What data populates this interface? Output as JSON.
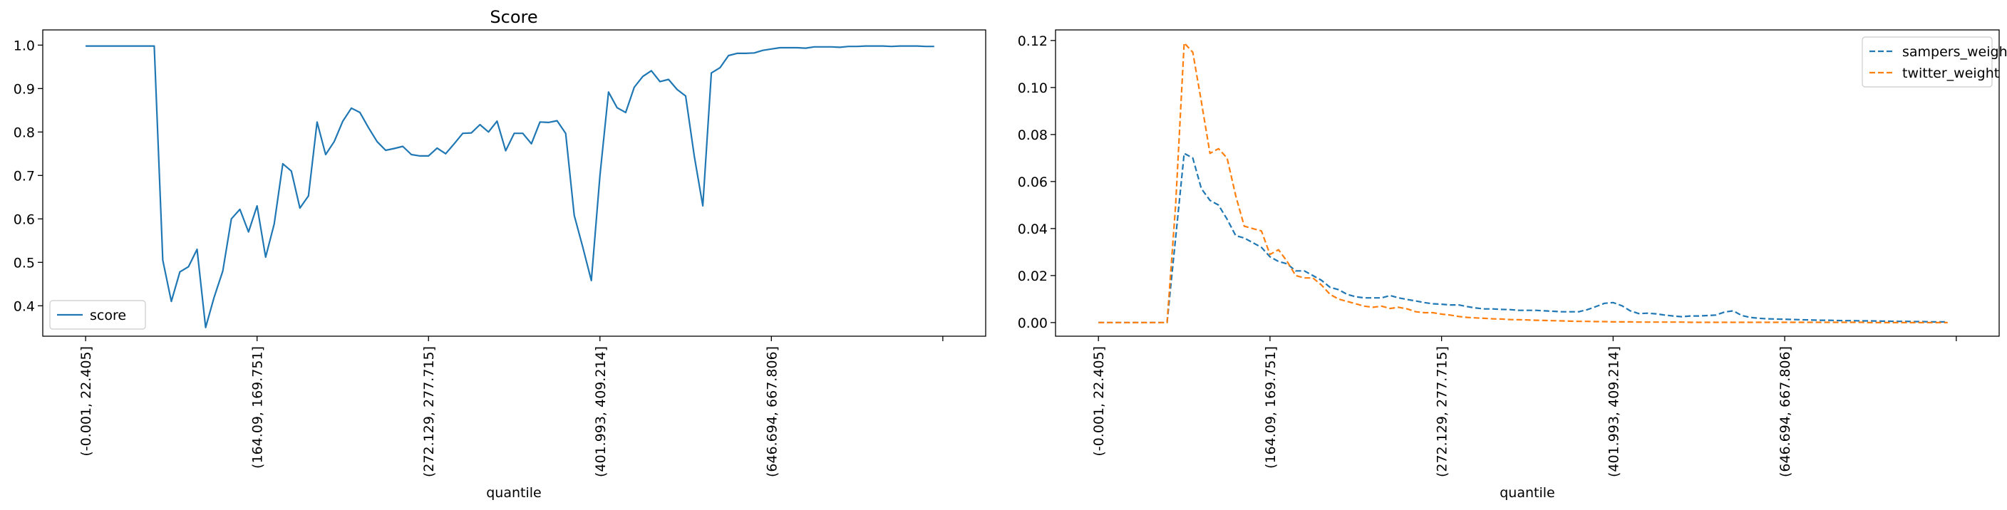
{
  "chart_data": [
    {
      "type": "line",
      "title": "Score",
      "xlabel": "quantile",
      "ylabel": "",
      "ylim": [
        0.33,
        1.035
      ],
      "yticks": [
        0.4,
        0.5,
        0.6,
        0.7,
        0.8,
        0.9,
        1.0
      ],
      "ytick_labels": [
        "0.4",
        "0.5",
        "0.6",
        "0.7",
        "0.8",
        "0.9",
        "1.0"
      ],
      "xlim": [
        -5,
        105
      ],
      "xticks": [
        0,
        20,
        40,
        60,
        80,
        100
      ],
      "xtick_labels": [
        "(-0.001, 22.405]",
        "(164.09, 169.751]",
        "(272.129, 277.715]",
        "(401.993, 409.214]",
        "(646.694, 667.806]",
        ""
      ],
      "grid": false,
      "legend": {
        "position": "lower-left"
      },
      "series": [
        {
          "name": "score",
          "color": "#1f77b4",
          "style": "solid",
          "values": [
            0.998,
            0.998,
            0.998,
            0.998,
            0.998,
            0.998,
            0.998,
            0.998,
            0.998,
            0.505,
            0.41,
            0.478,
            0.49,
            0.53,
            0.35,
            0.42,
            0.48,
            0.6,
            0.622,
            0.57,
            0.63,
            0.512,
            0.588,
            0.727,
            0.71,
            0.625,
            0.653,
            0.823,
            0.748,
            0.778,
            0.825,
            0.855,
            0.845,
            0.81,
            0.778,
            0.758,
            0.762,
            0.767,
            0.748,
            0.745,
            0.745,
            0.763,
            0.75,
            0.773,
            0.797,
            0.798,
            0.817,
            0.8,
            0.825,
            0.757,
            0.797,
            0.797,
            0.773,
            0.823,
            0.822,
            0.826,
            0.797,
            0.608,
            0.535,
            0.458,
            0.7,
            0.892,
            0.856,
            0.845,
            0.903,
            0.928,
            0.941,
            0.916,
            0.921,
            0.898,
            0.883,
            0.745,
            0.63,
            0.936,
            0.948,
            0.976,
            0.981,
            0.981,
            0.982,
            0.988,
            0.991,
            0.994,
            0.994,
            0.994,
            0.993,
            0.996,
            0.996,
            0.996,
            0.995,
            0.997,
            0.997,
            0.998,
            0.998,
            0.998,
            0.997,
            0.998,
            0.998,
            0.998,
            0.997,
            0.997
          ]
        }
      ]
    },
    {
      "type": "line",
      "title": "",
      "xlabel": "quantile",
      "ylabel": "",
      "ylim": [
        -0.0058,
        0.1245
      ],
      "yticks": [
        0.0,
        0.02,
        0.04,
        0.06,
        0.08,
        0.1,
        0.12
      ],
      "ytick_labels": [
        "0.00",
        "0.02",
        "0.04",
        "0.06",
        "0.08",
        "0.10",
        "0.12"
      ],
      "xlim": [
        -5,
        105
      ],
      "xticks": [
        0,
        20,
        40,
        60,
        80,
        100
      ],
      "xtick_labels": [
        "(-0.001, 22.405]",
        "(164.09, 169.751]",
        "(272.129, 277.715]",
        "(401.993, 409.214]",
        "(646.694, 667.806]",
        ""
      ],
      "grid": false,
      "legend": {
        "position": "top-right"
      },
      "series": [
        {
          "name": "sampers_weight",
          "color": "#1f77b4",
          "style": "dashed",
          "values": [
            0,
            0,
            0,
            0,
            0,
            0,
            0,
            0,
            0,
            0.036,
            0.072,
            0.07,
            0.057,
            0.052,
            0.05,
            0.044,
            0.037,
            0.036,
            0.034,
            0.032,
            0.028,
            0.026,
            0.025,
            0.022,
            0.022,
            0.02,
            0.018,
            0.015,
            0.014,
            0.012,
            0.011,
            0.0105,
            0.0105,
            0.0105,
            0.0115,
            0.0105,
            0.0098,
            0.0092,
            0.0085,
            0.008,
            0.0078,
            0.0075,
            0.0075,
            0.0068,
            0.0062,
            0.0058,
            0.0058,
            0.0056,
            0.0055,
            0.0052,
            0.0052,
            0.0052,
            0.005,
            0.0048,
            0.0046,
            0.0046,
            0.0046,
            0.0055,
            0.0068,
            0.0082,
            0.0085,
            0.0072,
            0.005,
            0.0038,
            0.004,
            0.0037,
            0.0032,
            0.0028,
            0.0025,
            0.0028,
            0.0028,
            0.003,
            0.0032,
            0.0045,
            0.005,
            0.003,
            0.0022,
            0.0018,
            0.0016,
            0.0015,
            0.0014,
            0.0013,
            0.0012,
            0.0011,
            0.001,
            0.001,
            0.0009,
            0.0008,
            0.0008,
            0.0007,
            0.0007,
            0.0006,
            0.0006,
            0.0005,
            0.0005,
            0.0004,
            0.0004,
            0.0003,
            0.0003,
            0.0003
          ]
        },
        {
          "name": "twitter_weight",
          "color": "#ff7f0e",
          "style": "dashed",
          "values": [
            0,
            0,
            0,
            0,
            0,
            0,
            0,
            0,
            0,
            0.05,
            0.119,
            0.115,
            0.094,
            0.072,
            0.074,
            0.07,
            0.054,
            0.041,
            0.04,
            0.039,
            0.029,
            0.031,
            0.026,
            0.02,
            0.019,
            0.019,
            0.016,
            0.012,
            0.01,
            0.009,
            0.008,
            0.007,
            0.0065,
            0.007,
            0.006,
            0.0065,
            0.0058,
            0.0046,
            0.0042,
            0.0042,
            0.0036,
            0.0032,
            0.0026,
            0.0022,
            0.002,
            0.0018,
            0.0016,
            0.0015,
            0.0013,
            0.0012,
            0.0011,
            0.001,
            0.0009,
            0.0008,
            0.0007,
            0.0006,
            0.0005,
            0.0005,
            0.0004,
            0.0004,
            0.0003,
            0.0003,
            0.0003,
            0.0002,
            0.0002,
            0.0002,
            0.0002,
            0.0002,
            0.0002,
            0.0001,
            0.0001,
            0.0001,
            0.0001,
            0.0001,
            0.0001,
            0.0001,
            0.0001,
            0.0001,
            0.0001,
            0.0001,
            0.0001,
            0.0001,
            0.0001,
            0.0001,
            0.0001,
            0.0001,
            0.0001,
            0.0001,
            0.0001,
            0.0001,
            0,
            0,
            0,
            0,
            0,
            0,
            0,
            0,
            0,
            0
          ]
        }
      ]
    }
  ]
}
